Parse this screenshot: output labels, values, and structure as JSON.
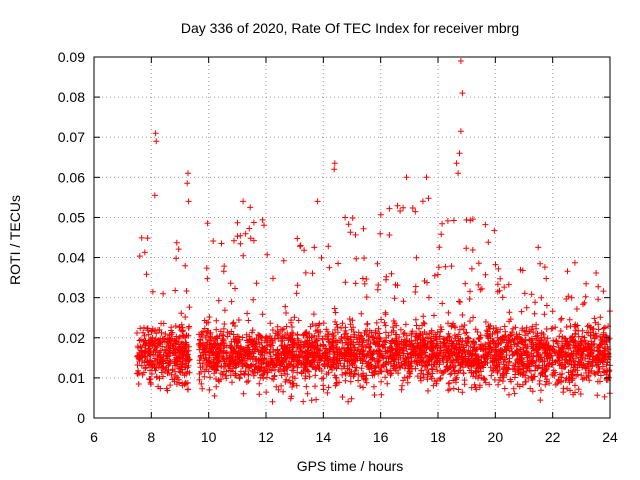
{
  "chart_data": {
    "type": "scatter",
    "title": "Day 336 of 2020, Rate Of TEC Index for receiver mbrg",
    "xlabel": "GPS time / hours",
    "ylabel": "ROTI / TECUs",
    "xlim": [
      6,
      24
    ],
    "ylim": [
      0,
      0.09
    ],
    "x_ticks": [
      "6",
      "8",
      "10",
      "12",
      "14",
      "16",
      "18",
      "20",
      "22",
      "24"
    ],
    "y_ticks": [
      "0",
      "0.01",
      "0.02",
      "0.03",
      "0.04",
      "0.05",
      "0.06",
      "0.07",
      "0.08",
      "0.09"
    ],
    "grid": true,
    "marker": "+",
    "color": "#ff0000",
    "data_gap_hours": [
      9.35,
      9.65
    ],
    "notable_points": [
      {
        "x": 8.15,
        "y": 0.071
      },
      {
        "x": 8.17,
        "y": 0.069
      },
      {
        "x": 8.12,
        "y": 0.0555
      },
      {
        "x": 9.28,
        "y": 0.061
      },
      {
        "x": 9.25,
        "y": 0.0585
      },
      {
        "x": 9.3,
        "y": 0.054
      },
      {
        "x": 11.2,
        "y": 0.054
      },
      {
        "x": 11.45,
        "y": 0.0525
      },
      {
        "x": 14.4,
        "y": 0.0635
      },
      {
        "x": 14.38,
        "y": 0.062
      },
      {
        "x": 13.8,
        "y": 0.054
      },
      {
        "x": 16.9,
        "y": 0.06
      },
      {
        "x": 17.6,
        "y": 0.06
      },
      {
        "x": 18.8,
        "y": 0.089
      },
      {
        "x": 18.85,
        "y": 0.081
      },
      {
        "x": 18.8,
        "y": 0.0715
      },
      {
        "x": 18.75,
        "y": 0.066
      },
      {
        "x": 18.65,
        "y": 0.0635
      },
      {
        "x": 18.7,
        "y": 0.061
      }
    ],
    "density_profile": [
      {
        "x0": 7.5,
        "x1": 9.35,
        "low": 0.006,
        "high": 0.045
      },
      {
        "x0": 9.65,
        "x1": 12.0,
        "low": 0.005,
        "high": 0.05
      },
      {
        "x0": 12.0,
        "x1": 14.0,
        "low": 0.004,
        "high": 0.045
      },
      {
        "x0": 14.0,
        "x1": 16.0,
        "low": 0.004,
        "high": 0.05
      },
      {
        "x0": 16.0,
        "x1": 18.0,
        "low": 0.005,
        "high": 0.055
      },
      {
        "x0": 18.0,
        "x1": 20.0,
        "low": 0.005,
        "high": 0.05
      },
      {
        "x0": 20.0,
        "x1": 22.0,
        "low": 0.004,
        "high": 0.045
      },
      {
        "x0": 22.0,
        "x1": 24.0,
        "low": 0.004,
        "high": 0.04
      }
    ]
  }
}
